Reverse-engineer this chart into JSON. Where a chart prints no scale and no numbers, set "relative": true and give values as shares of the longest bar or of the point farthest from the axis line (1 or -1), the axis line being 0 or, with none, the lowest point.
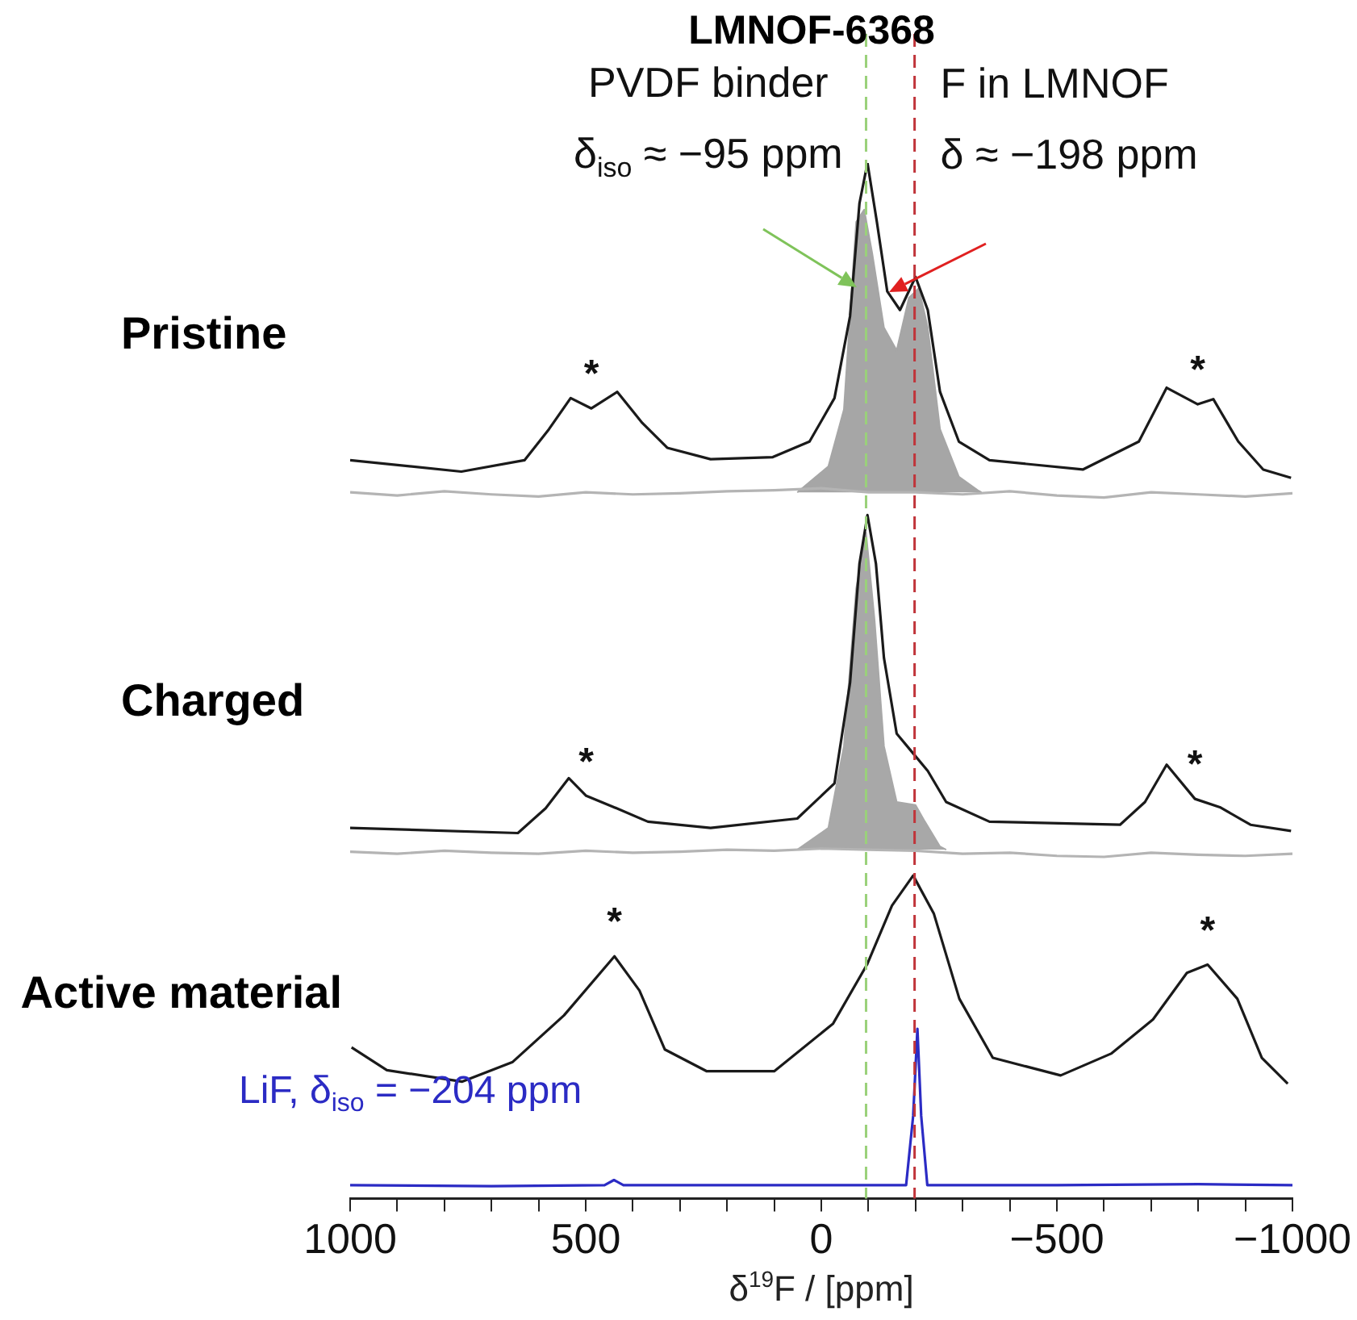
{
  "chart_data": {
    "type": "line",
    "title": "LMNOF-6368",
    "xlabel": "δ$^{19}$F / [ppm]",
    "relative": true,
    "legend": false,
    "grid": false,
    "tick_labels": "x",
    "marker": "none",
    "xlim": [
      1000,
      -1000
    ],
    "xticks": [
      1000,
      {
        "value": 900,
        "label": null
      },
      {
        "value": 800,
        "label": null
      },
      {
        "value": 700,
        "label": null
      },
      {
        "value": 600,
        "label": null
      },
      500,
      {
        "value": 400,
        "label": null
      },
      {
        "value": 300,
        "label": null
      },
      {
        "value": 200,
        "label": null
      },
      {
        "value": 100,
        "label": null
      },
      0,
      {
        "value": -100,
        "label": null
      },
      {
        "value": -200,
        "label": null
      },
      {
        "value": -300,
        "label": null
      },
      {
        "value": -400,
        "label": null
      },
      {
        "value": -500,
        "label": "−500"
      },
      {
        "value": -600,
        "label": null
      },
      {
        "value": -700,
        "label": null
      },
      {
        "value": -800,
        "label": null
      },
      {
        "value": -900,
        "label": null
      },
      {
        "value": -1000,
        "label": "−1000"
      }
    ],
    "series": [
      {
        "name": "Pristine",
        "color": "#1a1a1a",
        "x": [
          1000,
          764,
          630,
          578,
          532,
          488,
          433,
          380,
          327,
          235,
          103,
          25,
          -28,
          -61,
          -81,
          -98,
          -118,
          -140,
          -167,
          -200,
          -226,
          -252,
          -292,
          -357,
          -555,
          -674,
          -733,
          -799,
          -832,
          -885,
          -938,
          -997
        ],
        "values": [
          0.713,
          0.702,
          0.713,
          0.743,
          0.773,
          0.763,
          0.779,
          0.749,
          0.725,
          0.714,
          0.716,
          0.731,
          0.773,
          0.852,
          0.961,
          1.0,
          0.943,
          0.876,
          0.858,
          0.89,
          0.858,
          0.779,
          0.731,
          0.713,
          0.704,
          0.731,
          0.783,
          0.767,
          0.772,
          0.731,
          0.704,
          0.696
        ]
      },
      {
        "type": "area",
        "color": "#a6a6a6",
        "x": [
          51,
          -15,
          -48,
          -74,
          -91,
          -108,
          -133,
          -160,
          -186,
          -207,
          -226,
          -252,
          -292,
          -332,
          -340
        ],
        "values": [
          0.682,
          0.707,
          0.762,
          0.943,
          0.955,
          0.913,
          0.841,
          0.819,
          0.87,
          0.879,
          0.841,
          0.743,
          0.697,
          0.684,
          0.682
        ]
      },
      {
        "type": "line",
        "color": "#b4b4b4",
        "x": [
          1000,
          900,
          800,
          700,
          600,
          500,
          400,
          300,
          200,
          100,
          0,
          -100,
          -200,
          -300,
          -400,
          -500,
          -600,
          -700,
          -800,
          -900,
          -1000
        ],
        "values": [
          0.682,
          0.679,
          0.683,
          0.68,
          0.678,
          0.682,
          0.68,
          0.681,
          0.683,
          0.684,
          0.686,
          0.682,
          0.682,
          0.68,
          0.683,
          0.679,
          0.677,
          0.682,
          0.68,
          0.678,
          0.681
        ]
      },
      {
        "name": "Charged",
        "color": "#1a1a1a",
        "x": [
          1000,
          644,
          585,
          536,
          499,
          440,
          368,
          235,
          51,
          -28,
          -61,
          -81,
          -98,
          -116,
          -133,
          -160,
          -193,
          -226,
          -265,
          -357,
          -634,
          -687,
          -733,
          -793,
          -846,
          -911,
          -997
        ],
        "values": [
          0.358,
          0.353,
          0.377,
          0.406,
          0.389,
          0.378,
          0.364,
          0.358,
          0.367,
          0.401,
          0.498,
          0.613,
          0.66,
          0.613,
          0.522,
          0.449,
          0.431,
          0.413,
          0.383,
          0.364,
          0.361,
          0.383,
          0.419,
          0.386,
          0.378,
          0.361,
          0.355
        ]
      },
      {
        "type": "area",
        "color": "#a8a8a8",
        "x": [
          51,
          -15,
          -48,
          -74,
          -95,
          -113,
          -133,
          -160,
          -200,
          -220,
          -252,
          -265
        ],
        "values": [
          0.337,
          0.358,
          0.437,
          0.589,
          0.643,
          0.559,
          0.437,
          0.383,
          0.38,
          0.364,
          0.34,
          0.337
        ]
      },
      {
        "type": "line",
        "color": "#b4b4b4",
        "x": [
          1000,
          900,
          800,
          700,
          600,
          500,
          400,
          300,
          200,
          100,
          0,
          -100,
          -200,
          -300,
          -400,
          -500,
          -600,
          -700,
          -800,
          -900,
          -1000
        ],
        "values": [
          0.335,
          0.333,
          0.336,
          0.334,
          0.333,
          0.336,
          0.334,
          0.335,
          0.337,
          0.336,
          0.338,
          0.337,
          0.336,
          0.333,
          0.334,
          0.331,
          0.33,
          0.334,
          0.332,
          0.331,
          0.333
        ]
      },
      {
        "name": "Active material",
        "color": "#1a1a1a",
        "x": [
          997,
          922,
          762,
          655,
          546,
          439,
          386,
          332,
          243,
          100,
          -25,
          -97,
          -150,
          -195,
          -239,
          -293,
          -364,
          -508,
          -615,
          -704,
          -776,
          -820,
          -883,
          -935,
          -990
        ],
        "values": [
          0.146,
          0.124,
          0.113,
          0.132,
          0.177,
          0.234,
          0.201,
          0.144,
          0.123,
          0.123,
          0.169,
          0.226,
          0.283,
          0.312,
          0.275,
          0.193,
          0.136,
          0.119,
          0.14,
          0.173,
          0.218,
          0.226,
          0.193,
          0.136,
          0.111
        ]
      },
      {
        "name": "LiF, δ$_{iso}$ = −204 ppm",
        "type": "line",
        "color": "#2b2bc4",
        "x": [
          1000,
          700,
          460,
          440,
          420,
          100,
          -180,
          -195,
          -204,
          -212,
          -225,
          -500,
          -800,
          -1000
        ],
        "values": [
          0.013,
          0.012,
          0.013,
          0.018,
          0.013,
          0.013,
          0.013,
          0.08,
          0.164,
          0.08,
          0.013,
          0.013,
          0.014,
          0.013
        ]
      }
    ],
    "ref_lines": [
      {
        "axis": "x",
        "value": -95,
        "color": "#9ad17a",
        "line_style": "dashed"
      },
      {
        "axis": "x",
        "value": -198,
        "color": "#c0343a",
        "line_style": "dashed"
      }
    ],
    "annotations": [
      {
        "text": "PVDF binder\nδ$_{iso}$ ≈ −95 ppm",
        "x": -75,
        "y": 0.88
      },
      {
        "text": "F in LMNOF\nδ ≈ −198 ppm",
        "x": -143,
        "y": 0.875
      },
      {
        "text": "*",
        "x": 488,
        "y": 0.763
      },
      {
        "text": "*",
        "x": -799,
        "y": 0.767
      },
      {
        "text": "*",
        "x": 499,
        "y": 0.389
      },
      {
        "text": "*",
        "x": -793,
        "y": 0.386
      },
      {
        "text": "*",
        "x": 439,
        "y": 0.234
      },
      {
        "text": "*",
        "x": -820,
        "y": 0.226
      }
    ]
  }
}
